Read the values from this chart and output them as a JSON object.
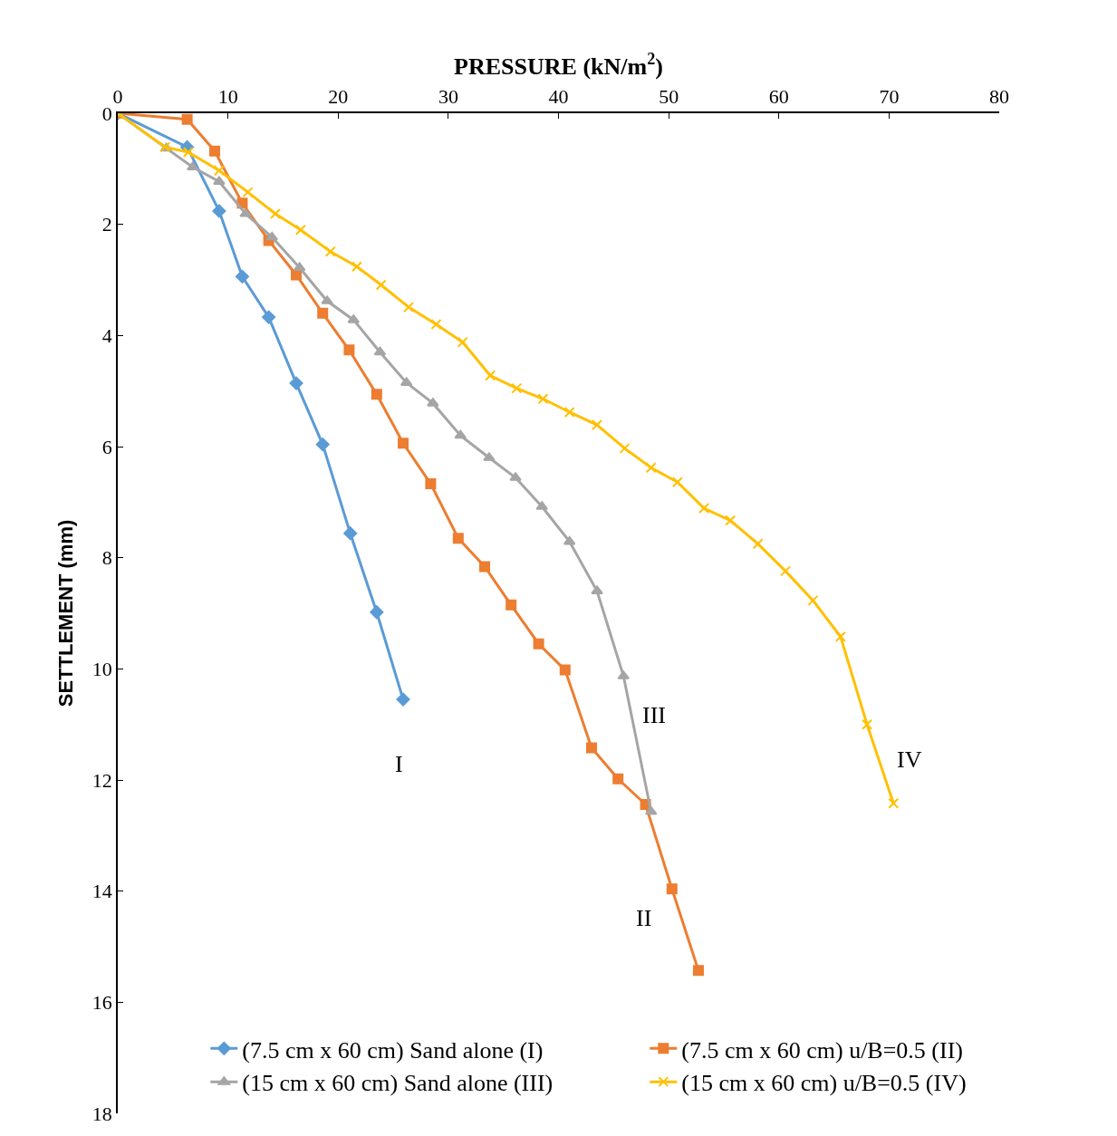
{
  "chart_data": {
    "type": "line",
    "xlabel": "PRESSURE (kN/m$^{2}$)",
    "ylabel": "SETTLEMENT (mm)",
    "xlim": [
      0,
      80
    ],
    "xticks": [
      0,
      10,
      20,
      30,
      40,
      50,
      60,
      70,
      80
    ],
    "ylim": [
      18,
      0
    ],
    "yticks": [
      0,
      2,
      4,
      6,
      8,
      10,
      12,
      14,
      16,
      18
    ],
    "legend": "bottom",
    "series": [
      {
        "name": "(7.5 cm x 60 cm) Sand alone (I)",
        "color": "#5b9bd5",
        "marker": "diamond",
        "x": [
          0,
          6.3,
          9.2,
          11.3,
          13.7,
          16.2,
          18.6,
          21.1,
          23.5,
          25.9
        ],
        "values": [
          0,
          0.61,
          1.76,
          2.94,
          3.67,
          4.86,
          5.96,
          7.56,
          8.98,
          10.55
        ]
      },
      {
        "name": "(7.5 cm x 60 cm) u/B=0.5 (II)",
        "color": "#ed7d31",
        "marker": "square",
        "x": [
          0,
          6.3,
          8.8,
          11.3,
          13.7,
          16.2,
          18.6,
          21.0,
          23.5,
          25.9,
          28.4,
          30.9,
          33.3,
          35.7,
          38.2,
          40.6,
          43.0,
          45.4,
          47.9,
          50.3,
          52.7
        ],
        "values": [
          0,
          0.11,
          0.68,
          1.62,
          2.29,
          2.91,
          3.6,
          4.26,
          5.06,
          5.94,
          6.67,
          7.65,
          8.16,
          8.85,
          9.55,
          10.02,
          11.42,
          11.98,
          12.44,
          13.96,
          15.43
        ]
      },
      {
        "name": "(15 cm x 60 cm) Sand alone (III)",
        "color": "#a5a5a5",
        "marker": "triangle",
        "x": [
          0,
          4.4,
          6.8,
          9.2,
          11.6,
          14.0,
          16.5,
          19.0,
          21.4,
          23.8,
          26.2,
          28.6,
          31.1,
          33.7,
          36.1,
          38.5,
          41.0,
          43.5,
          45.9,
          48.4
        ],
        "values": [
          0,
          0.63,
          0.97,
          1.23,
          1.81,
          2.23,
          2.78,
          3.38,
          3.72,
          4.3,
          4.85,
          5.22,
          5.8,
          6.2,
          6.56,
          7.08,
          7.71,
          8.6,
          10.13,
          12.57
        ]
      },
      {
        "name": "(15 cm x 60 cm) u/B=0.5 (IV)",
        "color": "#ffc000",
        "marker": "cross",
        "x": [
          0,
          4.3,
          6.4,
          9.2,
          11.8,
          14.3,
          16.6,
          19.3,
          21.7,
          23.9,
          26.4,
          28.9,
          31.3,
          33.8,
          36.2,
          38.6,
          41.0,
          43.5,
          46.0,
          48.4,
          50.8,
          53.2,
          55.6,
          58.1,
          60.6,
          63.1,
          65.6,
          68.0,
          70.4
        ],
        "values": [
          0,
          0.61,
          0.7,
          1.03,
          1.42,
          1.81,
          2.1,
          2.49,
          2.76,
          3.09,
          3.49,
          3.8,
          4.12,
          4.72,
          4.95,
          5.14,
          5.38,
          5.61,
          6.03,
          6.38,
          6.64,
          7.11,
          7.33,
          7.75,
          8.24,
          8.77,
          9.42,
          11.0,
          12.42
        ]
      }
    ],
    "annotations": [
      "I",
      "II",
      "III",
      "IV"
    ]
  }
}
